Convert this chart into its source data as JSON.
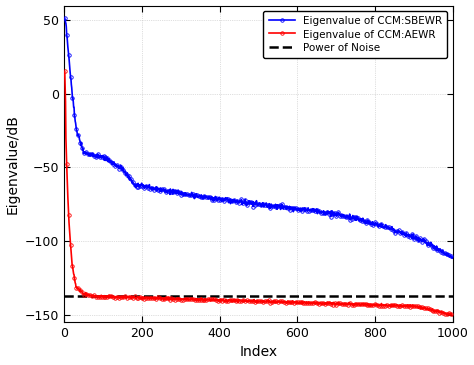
{
  "title": "",
  "xlabel": "Index",
  "ylabel": "Eigenvalue/dB",
  "xlim": [
    0,
    1000
  ],
  "ylim": [
    -155,
    60
  ],
  "yticks": [
    -150,
    -100,
    -50,
    0,
    50
  ],
  "xticks": [
    0,
    200,
    400,
    600,
    800,
    1000
  ],
  "noise_level": -137,
  "blue_color": "#0000FF",
  "red_color": "#FF0000",
  "noise_color": "#000000",
  "legend_labels": [
    "Eigenvalue of CCM:SBEWR",
    "Eigenvalue of CCM:AEWR",
    "Power of Noise"
  ],
  "background_color": "#ffffff",
  "grid_color": "#c0c0c0"
}
